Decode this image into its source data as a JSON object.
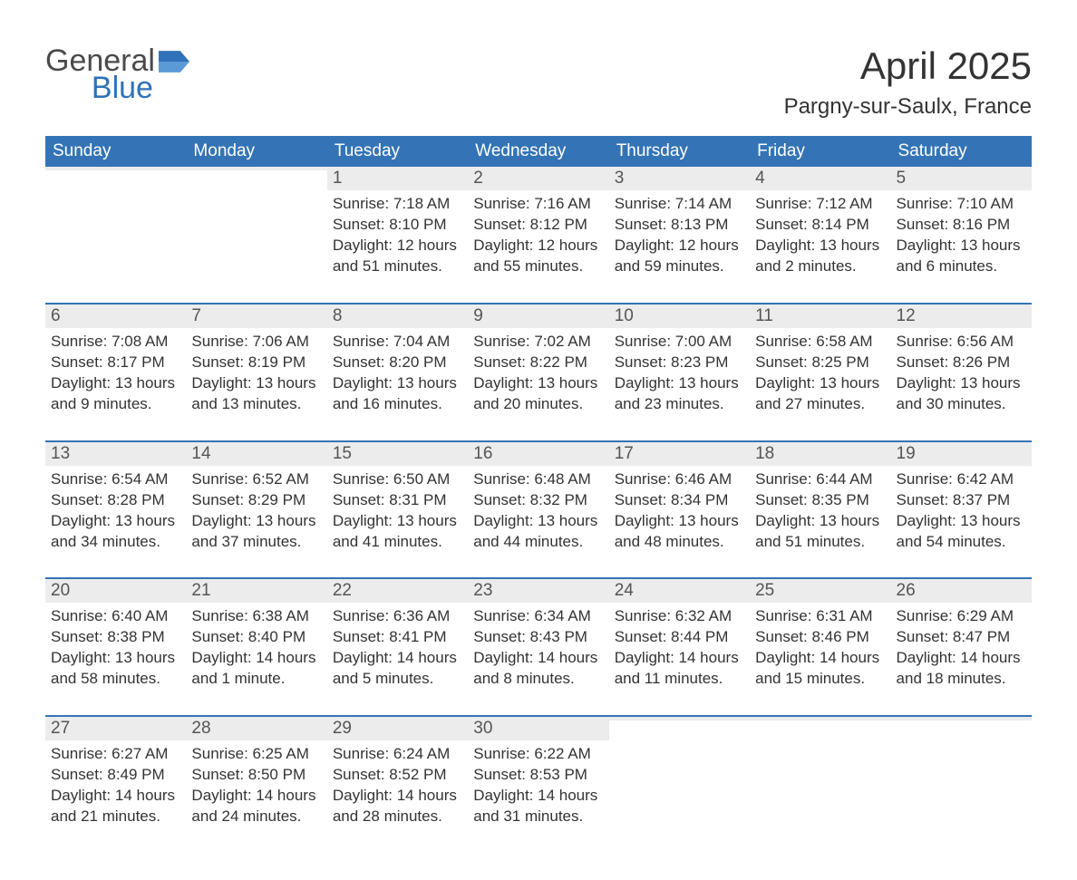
{
  "logo": {
    "general": "General",
    "blue": "Blue",
    "accent_color": "#2f72b9"
  },
  "header": {
    "month_title": "April 2025",
    "location": "Pargny-sur-Saulx, France"
  },
  "colors": {
    "header_bg": "#3474b6",
    "header_text": "#ffffff",
    "daynum_bg": "#ececec",
    "text": "#333333",
    "row_border": "#3474b6"
  },
  "typography": {
    "month_title_fontsize": 42,
    "location_fontsize": 24,
    "weekday_fontsize": 19,
    "daynum_fontsize": 19,
    "body_fontsize": 17
  },
  "calendar": {
    "type": "table",
    "columns": [
      "Sunday",
      "Monday",
      "Tuesday",
      "Wednesday",
      "Thursday",
      "Friday",
      "Saturday"
    ],
    "weeks": [
      [
        {
          "day": "",
          "sunrise": "",
          "sunset": "",
          "daylight": ""
        },
        {
          "day": "",
          "sunrise": "",
          "sunset": "",
          "daylight": ""
        },
        {
          "day": "1",
          "sunrise": "Sunrise: 7:18 AM",
          "sunset": "Sunset: 8:10 PM",
          "daylight": "Daylight: 12 hours and 51 minutes."
        },
        {
          "day": "2",
          "sunrise": "Sunrise: 7:16 AM",
          "sunset": "Sunset: 8:12 PM",
          "daylight": "Daylight: 12 hours and 55 minutes."
        },
        {
          "day": "3",
          "sunrise": "Sunrise: 7:14 AM",
          "sunset": "Sunset: 8:13 PM",
          "daylight": "Daylight: 12 hours and 59 minutes."
        },
        {
          "day": "4",
          "sunrise": "Sunrise: 7:12 AM",
          "sunset": "Sunset: 8:14 PM",
          "daylight": "Daylight: 13 hours and 2 minutes."
        },
        {
          "day": "5",
          "sunrise": "Sunrise: 7:10 AM",
          "sunset": "Sunset: 8:16 PM",
          "daylight": "Daylight: 13 hours and 6 minutes."
        }
      ],
      [
        {
          "day": "6",
          "sunrise": "Sunrise: 7:08 AM",
          "sunset": "Sunset: 8:17 PM",
          "daylight": "Daylight: 13 hours and 9 minutes."
        },
        {
          "day": "7",
          "sunrise": "Sunrise: 7:06 AM",
          "sunset": "Sunset: 8:19 PM",
          "daylight": "Daylight: 13 hours and 13 minutes."
        },
        {
          "day": "8",
          "sunrise": "Sunrise: 7:04 AM",
          "sunset": "Sunset: 8:20 PM",
          "daylight": "Daylight: 13 hours and 16 minutes."
        },
        {
          "day": "9",
          "sunrise": "Sunrise: 7:02 AM",
          "sunset": "Sunset: 8:22 PM",
          "daylight": "Daylight: 13 hours and 20 minutes."
        },
        {
          "day": "10",
          "sunrise": "Sunrise: 7:00 AM",
          "sunset": "Sunset: 8:23 PM",
          "daylight": "Daylight: 13 hours and 23 minutes."
        },
        {
          "day": "11",
          "sunrise": "Sunrise: 6:58 AM",
          "sunset": "Sunset: 8:25 PM",
          "daylight": "Daylight: 13 hours and 27 minutes."
        },
        {
          "day": "12",
          "sunrise": "Sunrise: 6:56 AM",
          "sunset": "Sunset: 8:26 PM",
          "daylight": "Daylight: 13 hours and 30 minutes."
        }
      ],
      [
        {
          "day": "13",
          "sunrise": "Sunrise: 6:54 AM",
          "sunset": "Sunset: 8:28 PM",
          "daylight": "Daylight: 13 hours and 34 minutes."
        },
        {
          "day": "14",
          "sunrise": "Sunrise: 6:52 AM",
          "sunset": "Sunset: 8:29 PM",
          "daylight": "Daylight: 13 hours and 37 minutes."
        },
        {
          "day": "15",
          "sunrise": "Sunrise: 6:50 AM",
          "sunset": "Sunset: 8:31 PM",
          "daylight": "Daylight: 13 hours and 41 minutes."
        },
        {
          "day": "16",
          "sunrise": "Sunrise: 6:48 AM",
          "sunset": "Sunset: 8:32 PM",
          "daylight": "Daylight: 13 hours and 44 minutes."
        },
        {
          "day": "17",
          "sunrise": "Sunrise: 6:46 AM",
          "sunset": "Sunset: 8:34 PM",
          "daylight": "Daylight: 13 hours and 48 minutes."
        },
        {
          "day": "18",
          "sunrise": "Sunrise: 6:44 AM",
          "sunset": "Sunset: 8:35 PM",
          "daylight": "Daylight: 13 hours and 51 minutes."
        },
        {
          "day": "19",
          "sunrise": "Sunrise: 6:42 AM",
          "sunset": "Sunset: 8:37 PM",
          "daylight": "Daylight: 13 hours and 54 minutes."
        }
      ],
      [
        {
          "day": "20",
          "sunrise": "Sunrise: 6:40 AM",
          "sunset": "Sunset: 8:38 PM",
          "daylight": "Daylight: 13 hours and 58 minutes."
        },
        {
          "day": "21",
          "sunrise": "Sunrise: 6:38 AM",
          "sunset": "Sunset: 8:40 PM",
          "daylight": "Daylight: 14 hours and 1 minute."
        },
        {
          "day": "22",
          "sunrise": "Sunrise: 6:36 AM",
          "sunset": "Sunset: 8:41 PM",
          "daylight": "Daylight: 14 hours and 5 minutes."
        },
        {
          "day": "23",
          "sunrise": "Sunrise: 6:34 AM",
          "sunset": "Sunset: 8:43 PM",
          "daylight": "Daylight: 14 hours and 8 minutes."
        },
        {
          "day": "24",
          "sunrise": "Sunrise: 6:32 AM",
          "sunset": "Sunset: 8:44 PM",
          "daylight": "Daylight: 14 hours and 11 minutes."
        },
        {
          "day": "25",
          "sunrise": "Sunrise: 6:31 AM",
          "sunset": "Sunset: 8:46 PM",
          "daylight": "Daylight: 14 hours and 15 minutes."
        },
        {
          "day": "26",
          "sunrise": "Sunrise: 6:29 AM",
          "sunset": "Sunset: 8:47 PM",
          "daylight": "Daylight: 14 hours and 18 minutes."
        }
      ],
      [
        {
          "day": "27",
          "sunrise": "Sunrise: 6:27 AM",
          "sunset": "Sunset: 8:49 PM",
          "daylight": "Daylight: 14 hours and 21 minutes."
        },
        {
          "day": "28",
          "sunrise": "Sunrise: 6:25 AM",
          "sunset": "Sunset: 8:50 PM",
          "daylight": "Daylight: 14 hours and 24 minutes."
        },
        {
          "day": "29",
          "sunrise": "Sunrise: 6:24 AM",
          "sunset": "Sunset: 8:52 PM",
          "daylight": "Daylight: 14 hours and 28 minutes."
        },
        {
          "day": "30",
          "sunrise": "Sunrise: 6:22 AM",
          "sunset": "Sunset: 8:53 PM",
          "daylight": "Daylight: 14 hours and 31 minutes."
        },
        {
          "day": "",
          "sunrise": "",
          "sunset": "",
          "daylight": ""
        },
        {
          "day": "",
          "sunrise": "",
          "sunset": "",
          "daylight": ""
        },
        {
          "day": "",
          "sunrise": "",
          "sunset": "",
          "daylight": ""
        }
      ]
    ]
  }
}
